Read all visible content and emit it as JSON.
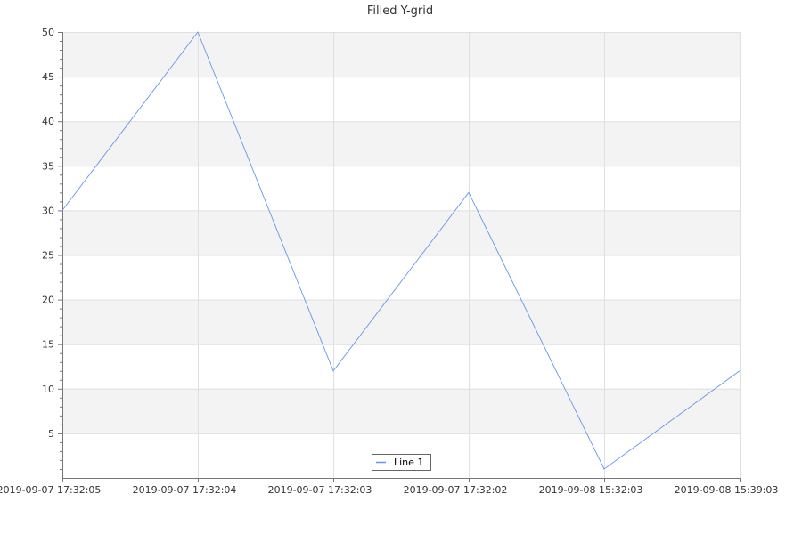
{
  "chart_data": {
    "type": "line",
    "title": "Filled Y-grid",
    "xlabel": "",
    "ylabel": "",
    "categories": [
      "2019-09-07 17:32:05",
      "2019-09-07 17:32:04",
      "2019-09-07 17:32:03",
      "2019-09-07 17:32:02",
      "2019-09-08 15:32:03",
      "2019-09-08 15:39:03"
    ],
    "series": [
      {
        "name": "Line 1",
        "values": [
          30,
          50,
          12,
          32,
          1,
          12
        ],
        "color": "#6495ed"
      }
    ],
    "ylim": [
      0,
      50
    ],
    "yticks": [
      5,
      10,
      15,
      20,
      25,
      30,
      35,
      40,
      45,
      50
    ],
    "grid": true,
    "filled_y_grid": true,
    "band_color": "#f3f3f3",
    "grid_color": "#e0e0e0",
    "legend": {
      "placement": "bottom-center"
    }
  }
}
